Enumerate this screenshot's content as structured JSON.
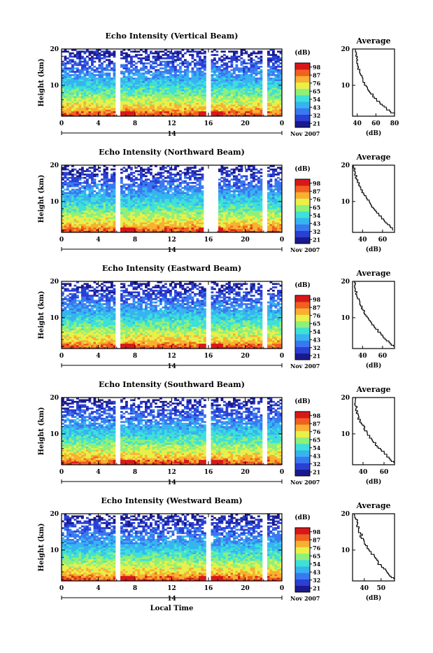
{
  "figure": {
    "date_label": "Nov 2007",
    "day_label": "14",
    "x_axis_label": "Local Time",
    "colorbar_unit": "(dB)",
    "average_title": "Average",
    "average_xlabel": "(dB)"
  },
  "chart_data": [
    {
      "type": "heatmap",
      "title": "Echo Intensity (Vertical Beam)",
      "ylabel": "Height (km)",
      "xlabel": "",
      "x_ticks": [
        "0",
        "4",
        "8",
        "12",
        "16",
        "20",
        "0"
      ],
      "y_ticks": [
        "10",
        "20"
      ],
      "xlim": [
        0,
        24
      ],
      "ylim": [
        1.5,
        20
      ],
      "data_gaps_hours": [
        [
          5.8,
          6.3
        ],
        [
          15.8,
          16.2
        ],
        [
          21.8,
          22.3
        ]
      ],
      "colorbar": {
        "ticks": [
          "21",
          "32",
          "43",
          "54",
          "65",
          "76",
          "87",
          "98"
        ],
        "range": [
          21,
          98
        ]
      },
      "average_profile": {
        "type": "line",
        "title": "Average",
        "xlabel": "(dB)",
        "x_ticks": [
          "40",
          "60",
          "80"
        ],
        "xlim": [
          35,
          80
        ],
        "y_ticks": [
          "10",
          "20"
        ],
        "ylim": [
          1.5,
          20
        ],
        "height_km": [
          2,
          4,
          6,
          8,
          10,
          12,
          14,
          16,
          18,
          20
        ],
        "value_db": [
          79,
          68,
          60,
          54,
          48,
          45,
          42,
          40,
          39,
          38
        ]
      }
    },
    {
      "type": "heatmap",
      "title": "Echo Intensity (Northward Beam)",
      "ylabel": "Height (km)",
      "xlabel": "",
      "x_ticks": [
        "0",
        "4",
        "8",
        "12",
        "16",
        "20",
        "0"
      ],
      "y_ticks": [
        "10",
        "20"
      ],
      "xlim": [
        0,
        24
      ],
      "ylim": [
        1.5,
        20
      ],
      "data_gaps_hours": [
        [
          5.8,
          6.3
        ],
        [
          15.6,
          17
        ],
        [
          21.8,
          22.3
        ]
      ],
      "colorbar": {
        "ticks": [
          "21",
          "32",
          "43",
          "54",
          "65",
          "76",
          "87",
          "98"
        ],
        "range": [
          21,
          98
        ]
      },
      "average_profile": {
        "type": "line",
        "title": "Average",
        "xlabel": "(dB)",
        "x_ticks": [
          "40",
          "60"
        ],
        "xlim": [
          30,
          72
        ],
        "y_ticks": [
          "10",
          "20"
        ],
        "ylim": [
          1.5,
          20
        ],
        "height_km": [
          2,
          4,
          6,
          8,
          10,
          12,
          14,
          16,
          18,
          20
        ],
        "value_db": [
          71,
          64,
          57,
          51,
          46,
          41,
          37,
          34,
          32,
          31
        ]
      }
    },
    {
      "type": "heatmap",
      "title": "Echo Intensity (Eastward Beam)",
      "ylabel": "Height (km)",
      "xlabel": "",
      "x_ticks": [
        "0",
        "4",
        "8",
        "12",
        "16",
        "20",
        "0"
      ],
      "y_ticks": [
        "10",
        "20"
      ],
      "xlim": [
        0,
        24
      ],
      "ylim": [
        1.5,
        20
      ],
      "data_gaps_hours": [
        [
          5.8,
          6.3
        ],
        [
          15.8,
          16.2
        ],
        [
          21.8,
          22.3
        ]
      ],
      "colorbar": {
        "ticks": [
          "21",
          "32",
          "43",
          "54",
          "65",
          "76",
          "87",
          "98"
        ],
        "range": [
          21,
          98
        ]
      },
      "average_profile": {
        "type": "line",
        "title": "Average",
        "xlabel": "(dB)",
        "x_ticks": [
          "40",
          "60"
        ],
        "xlim": [
          30,
          72
        ],
        "y_ticks": [
          "10",
          "20"
        ],
        "ylim": [
          1.5,
          20
        ],
        "height_km": [
          2,
          4,
          6,
          8,
          10,
          12,
          14,
          16,
          18,
          20
        ],
        "value_db": [
          70,
          63,
          56,
          50,
          45,
          40,
          37,
          34,
          33,
          32
        ]
      }
    },
    {
      "type": "heatmap",
      "title": "Echo Intensity (Southward Beam)",
      "ylabel": "Height (km)",
      "xlabel": "",
      "x_ticks": [
        "0",
        "4",
        "8",
        "12",
        "16",
        "20",
        "0"
      ],
      "y_ticks": [
        "10",
        "20"
      ],
      "xlim": [
        0,
        24
      ],
      "ylim": [
        1.5,
        20
      ],
      "data_gaps_hours": [
        [
          5.8,
          6.3
        ],
        [
          15.8,
          16.2
        ],
        [
          21.8,
          22.3
        ]
      ],
      "colorbar": {
        "ticks": [
          "21",
          "32",
          "43",
          "54",
          "65",
          "76",
          "87",
          "98"
        ],
        "range": [
          21,
          98
        ]
      },
      "average_profile": {
        "type": "line",
        "title": "Average",
        "xlabel": "(dB)",
        "x_ticks": [
          "40",
          "60"
        ],
        "xlim": [
          30,
          70
        ],
        "y_ticks": [
          "10",
          "20"
        ],
        "ylim": [
          1.5,
          20
        ],
        "height_km": [
          2,
          4,
          6,
          8,
          10,
          12,
          14,
          16,
          18,
          20
        ],
        "value_db": [
          69,
          62,
          55,
          49,
          44,
          40,
          36,
          34,
          33,
          32
        ]
      }
    },
    {
      "type": "heatmap",
      "title": "Echo Intensity (Westward Beam)",
      "ylabel": "Height (km)",
      "xlabel": "Local Time",
      "x_ticks": [
        "0",
        "4",
        "8",
        "12",
        "16",
        "20",
        "0"
      ],
      "y_ticks": [
        "10",
        "20"
      ],
      "xlim": [
        0,
        24
      ],
      "ylim": [
        1.5,
        20
      ],
      "data_gaps_hours": [
        [
          5.8,
          6.3
        ],
        [
          15.8,
          16.2
        ],
        [
          21.8,
          22.3
        ]
      ],
      "colorbar": {
        "ticks": [
          "21",
          "32",
          "43",
          "54",
          "65",
          "76",
          "87",
          "98"
        ],
        "range": [
          21,
          98
        ]
      },
      "average_profile": {
        "type": "line",
        "title": "Average",
        "xlabel": "(dB)",
        "x_ticks": [
          "40",
          "50"
        ],
        "xlim": [
          33,
          58
        ],
        "y_ticks": [
          "10",
          "20"
        ],
        "ylim": [
          1.5,
          20
        ],
        "height_km": [
          2,
          4,
          6,
          8,
          10,
          12,
          14,
          16,
          18,
          20
        ],
        "value_db": [
          57,
          53,
          49,
          46,
          43,
          40,
          38,
          36,
          35,
          34
        ]
      }
    }
  ],
  "colors": {
    "colormap": [
      "#1a1a8c",
      "#2a3fd4",
      "#3a78f0",
      "#36b4f0",
      "#3ee0d8",
      "#8ef07a",
      "#e8f04a",
      "#f8b030",
      "#f06020",
      "#d81818"
    ],
    "gap": "#ffffff",
    "axis": "#000000"
  }
}
